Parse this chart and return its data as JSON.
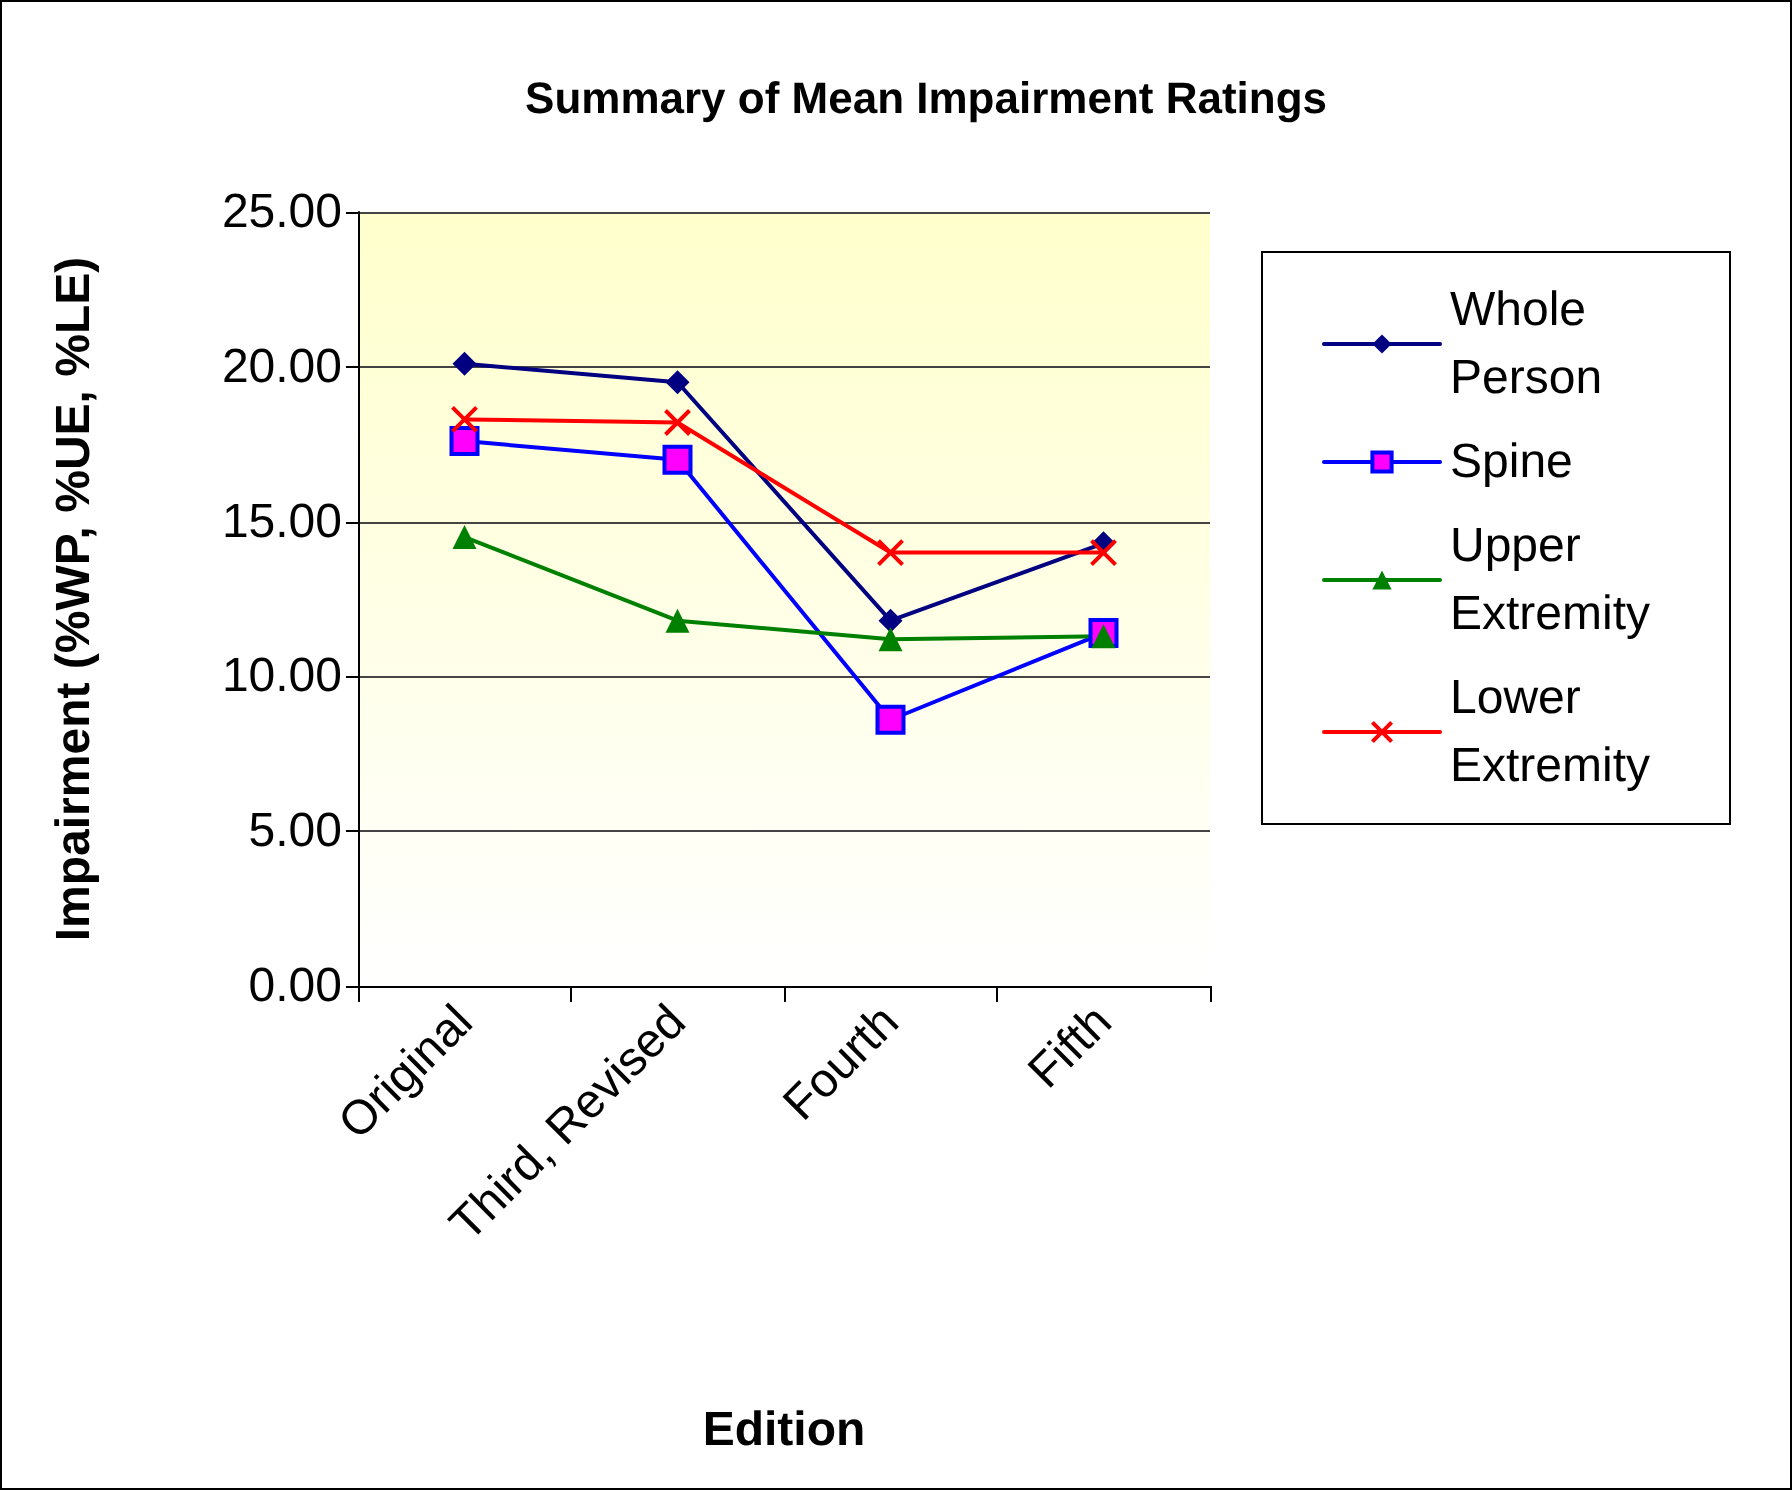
{
  "chart_data": {
    "type": "line",
    "title": "Summary of Mean Impairment Ratings",
    "xlabel": "Edition",
    "ylabel": "Impairment (%WP, %UE, %LE)",
    "categories": [
      "Original",
      "Third, Revised",
      "Fourth",
      "Fifth"
    ],
    "series": [
      {
        "name": "Whole Person",
        "color": "#000080",
        "marker": "diamond",
        "values": [
          20.1,
          19.5,
          11.8,
          14.3
        ]
      },
      {
        "name": "Spine",
        "color": "#0000ff",
        "marker": "square",
        "values": [
          17.6,
          17.0,
          8.6,
          11.4
        ]
      },
      {
        "name": "Upper Extremity",
        "color": "#008000",
        "marker": "triangle",
        "values": [
          14.5,
          11.8,
          11.2,
          11.3
        ]
      },
      {
        "name": "Lower Extremity",
        "color": "#ff0000",
        "marker": "cross",
        "values": [
          18.3,
          18.2,
          14.0,
          14.0
        ]
      }
    ],
    "ylim": [
      0,
      25
    ],
    "yticks": [
      {
        "value": 0,
        "label": "0.00"
      },
      {
        "value": 5,
        "label": "5.00"
      },
      {
        "value": 10,
        "label": "10.00"
      },
      {
        "value": 15,
        "label": "15.00"
      },
      {
        "value": 20,
        "label": "20.00"
      },
      {
        "value": 25,
        "label": "25.00"
      }
    ],
    "grid": "y",
    "legend": "right",
    "line_style": "solid"
  }
}
